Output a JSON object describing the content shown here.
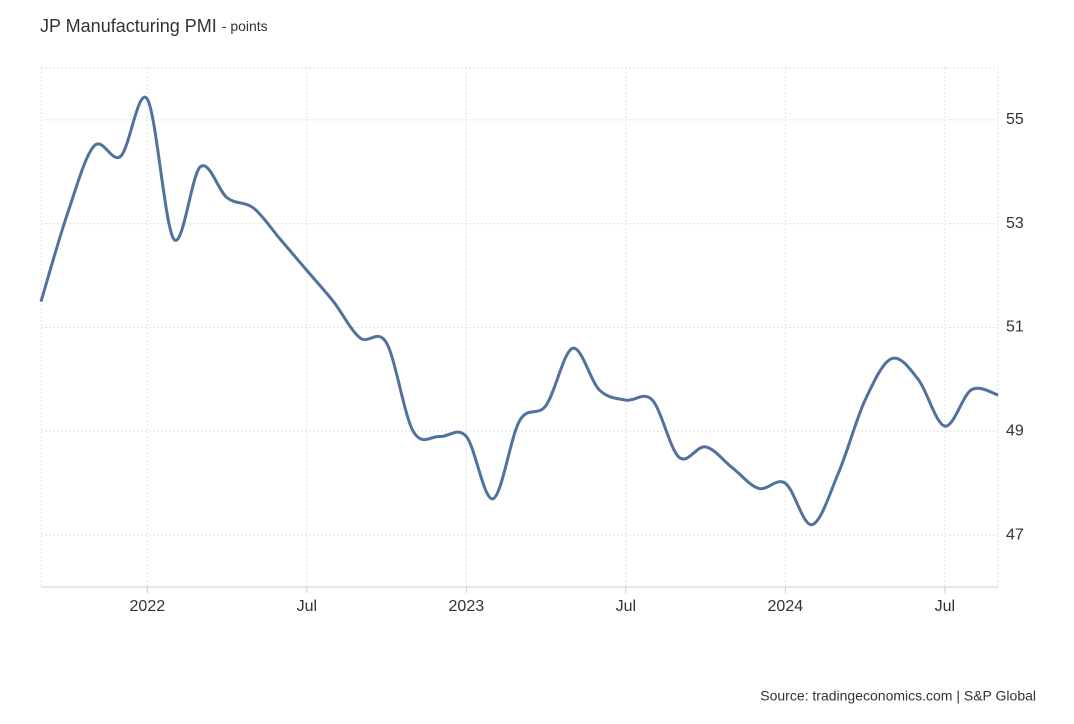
{
  "chart_data": {
    "type": "line",
    "title": "JP Manufacturing PMI",
    "subtitle": "- points",
    "source": "Source: tradingeconomics.com | S&P Global",
    "x": [
      "2021-09",
      "2021-10",
      "2021-11",
      "2021-12",
      "2022-01",
      "2022-02",
      "2022-03",
      "2022-04",
      "2022-05",
      "2022-06",
      "2022-07",
      "2022-08",
      "2022-09",
      "2022-10",
      "2022-11",
      "2022-12",
      "2023-01",
      "2023-02",
      "2023-03",
      "2023-04",
      "2023-05",
      "2023-06",
      "2023-07",
      "2023-08",
      "2023-09",
      "2023-10",
      "2023-11",
      "2023-12",
      "2024-01",
      "2024-02",
      "2024-03",
      "2024-04",
      "2024-05",
      "2024-06",
      "2024-07",
      "2024-08",
      "2024-09"
    ],
    "series": [
      {
        "name": "JP Manufacturing PMI",
        "color": "#51719e",
        "values": [
          51.5,
          53.2,
          54.5,
          54.3,
          55.4,
          52.7,
          54.1,
          53.5,
          53.3,
          52.7,
          52.1,
          51.5,
          50.8,
          50.7,
          49.0,
          48.9,
          48.9,
          47.7,
          49.2,
          49.5,
          50.6,
          49.8,
          49.6,
          49.6,
          48.5,
          48.7,
          48.3,
          47.9,
          48.0,
          47.2,
          48.2,
          49.6,
          50.4,
          50.0,
          49.1,
          49.8,
          49.7
        ]
      }
    ],
    "xlim": [
      "2021-09",
      "2024-09"
    ],
    "xticks": [
      {
        "value": "2022-01",
        "label": "2022"
      },
      {
        "value": "2022-07",
        "label": "Jul"
      },
      {
        "value": "2023-01",
        "label": "2023"
      },
      {
        "value": "2023-07",
        "label": "Jul"
      },
      {
        "value": "2024-01",
        "label": "2024"
      },
      {
        "value": "2024-07",
        "label": "Jul"
      }
    ],
    "ylim": [
      46,
      56
    ],
    "yticks": [
      47,
      49,
      51,
      53,
      55
    ],
    "grid": true
  }
}
